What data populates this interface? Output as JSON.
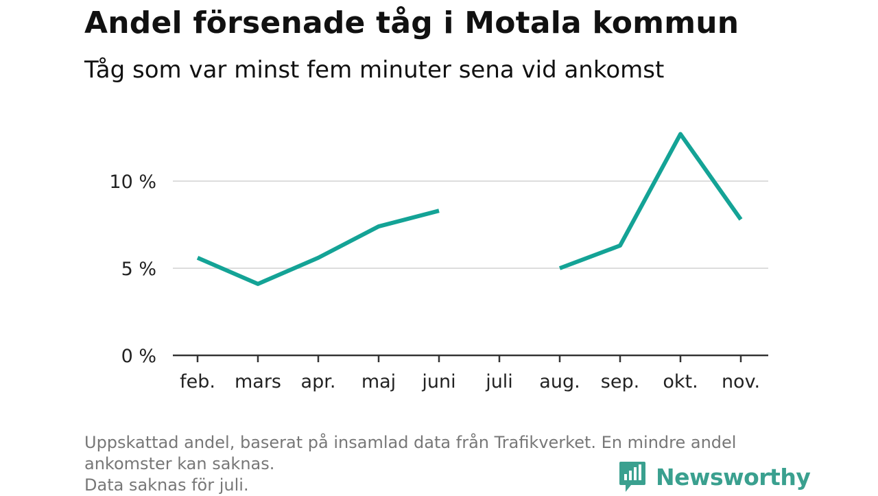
{
  "title": "Andel försenade tåg i Motala kommun",
  "subtitle": "Tåg som var minst fem minuter sena vid ankomst",
  "footnote": {
    "line1": "Uppskattad andel, baserat på insamlad data från Trafikverket. En mindre andel",
    "line2": "ankomster kan saknas.",
    "line3": "Data saknas för juli."
  },
  "brand": {
    "name": "Newsworthy",
    "icon": "newsworthy-logo-icon",
    "color": "#3aa08f"
  },
  "chart_data": {
    "type": "line",
    "categories": [
      "feb.",
      "mars",
      "apr.",
      "maj",
      "juni",
      "juli",
      "aug.",
      "sep.",
      "okt.",
      "nov."
    ],
    "series": [
      {
        "values": [
          5.6,
          4.1,
          5.6,
          7.4,
          8.3,
          null,
          5.0,
          6.3,
          12.7,
          7.8
        ],
        "color": "#14a396"
      }
    ],
    "yticks": [
      0,
      5,
      10
    ],
    "ytick_labels": [
      "0 %",
      "5 %",
      "10 %"
    ],
    "ylim": [
      0,
      14.5
    ],
    "grid": true,
    "gridline_color": "#dddddd",
    "xlabel": "",
    "ylabel": ""
  }
}
